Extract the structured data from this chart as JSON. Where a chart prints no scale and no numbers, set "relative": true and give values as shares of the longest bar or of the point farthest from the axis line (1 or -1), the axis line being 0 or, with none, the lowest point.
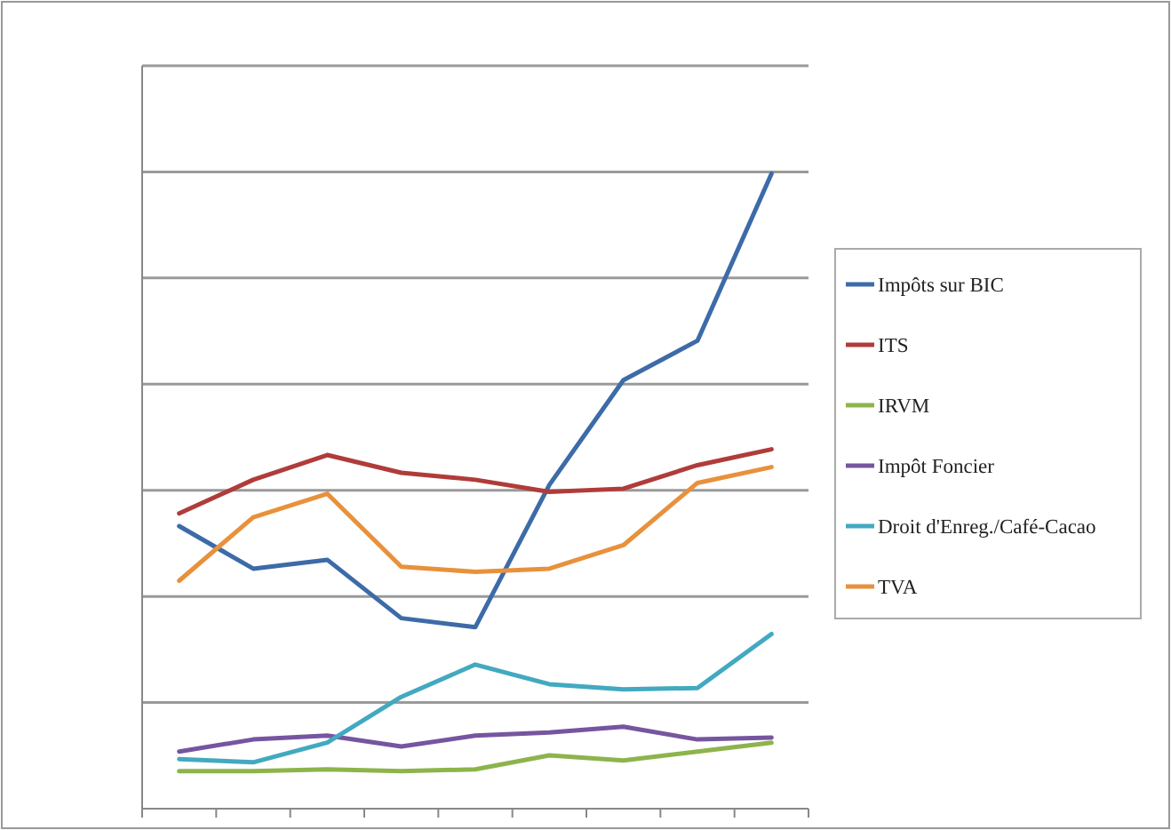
{
  "chart_data": {
    "type": "line",
    "relative": true,
    "grid": "y",
    "legend": "right",
    "categories": [
      null,
      null,
      null,
      null,
      null,
      null,
      null,
      null,
      null
    ],
    "series": [
      {
        "name": "Impôts sur BIC",
        "color": "#3d6ba8",
        "values": [
          0.445,
          0.378,
          0.392,
          0.3,
          0.286,
          0.51,
          0.675,
          0.737,
          1
        ]
      },
      {
        "name": "ITS",
        "color": "#b03c3a",
        "values": [
          0.465,
          0.518,
          0.557,
          0.529,
          0.518,
          0.499,
          0.504,
          0.541,
          0.566
        ]
      },
      {
        "name": "IRVM",
        "color": "#8db44c",
        "values": [
          0.059,
          0.059,
          0.062,
          0.059,
          0.062,
          0.084,
          0.076,
          0.09,
          0.104
        ]
      },
      {
        "name": "Impôt Foncier",
        "color": "#7655a0",
        "values": [
          0.09,
          0.109,
          0.115,
          0.098,
          0.115,
          0.12,
          0.129,
          0.109,
          0.112
        ]
      },
      {
        "name": "Droit d'Enreg./Café-Cacao",
        "color": "#42a9c0",
        "values": [
          0.078,
          0.073,
          0.104,
          0.176,
          0.227,
          0.196,
          0.188,
          0.19,
          0.275
        ]
      },
      {
        "name": "TVA",
        "color": "#e8913c",
        "values": [
          0.359,
          0.459,
          0.496,
          0.381,
          0.373,
          0.378,
          0.415,
          0.513,
          0.538
        ]
      }
    ]
  }
}
